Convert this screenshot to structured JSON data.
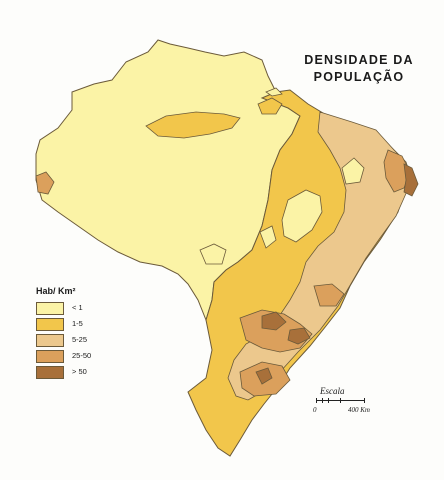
{
  "title_line1": "DENSIDADE DA",
  "title_line2": "POPULAÇÃO",
  "legend": {
    "title": "Hab/ Km²",
    "items": [
      {
        "label": "< 1",
        "color": "#fbf3a6"
      },
      {
        "label": "1-5",
        "color": "#f2c64b"
      },
      {
        "label": "5-25",
        "color": "#ecc88d"
      },
      {
        "label": "25-50",
        "color": "#dba05c"
      },
      {
        "label": "> 50",
        "color": "#a8703a"
      }
    ]
  },
  "scale": {
    "title": "Escala",
    "start": "0",
    "end": "400 Km"
  },
  "colors": {
    "outline": "#6b5a3a"
  }
}
